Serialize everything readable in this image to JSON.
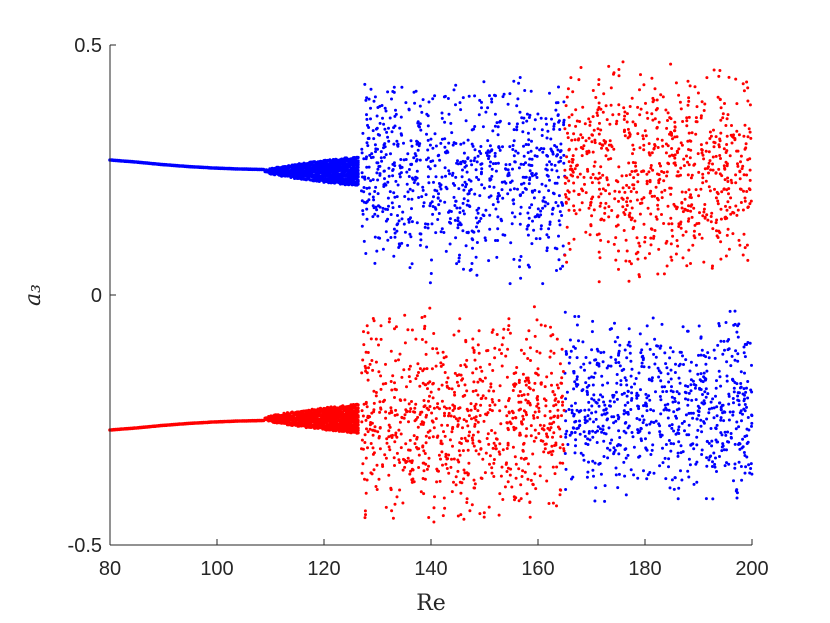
{
  "chart_data": {
    "type": "scatter",
    "title": "",
    "xlabel": "Re",
    "ylabel": "a₃",
    "xlim": [
      80,
      200
    ],
    "ylim": [
      -0.5,
      0.5
    ],
    "xticks": [
      80,
      100,
      120,
      140,
      160,
      180,
      200
    ],
    "yticks": [
      -0.5,
      0,
      0.5
    ],
    "xtick_labels": [
      "80",
      "100",
      "120",
      "140",
      "160",
      "180",
      "200"
    ],
    "ytick_labels": [
      "-0.5",
      "0",
      "0.5"
    ],
    "grid": false,
    "legend": false,
    "series": [
      {
        "color": "#0000ff",
        "segments": [
          {
            "kind": "fixed-point",
            "x_range": [
              80,
              109
            ],
            "y_values": [
              0.27,
              0.266,
              0.261,
              0.257,
              0.254,
              0.252,
              0.251
            ]
          },
          {
            "kind": "periodic-band",
            "x_range": [
              109,
              126.5
            ],
            "y_range": [
              0.22,
              0.275
            ]
          },
          {
            "kind": "chaotic-cloud",
            "x_range": [
              127,
              165
            ],
            "y_range": [
              0.02,
              0.45
            ]
          },
          {
            "kind": "chaotic-cloud",
            "x_range": [
              165,
              200
            ],
            "y_range": [
              -0.42,
              -0.02
            ]
          }
        ]
      },
      {
        "color": "#ff0000",
        "segments": [
          {
            "kind": "fixed-point",
            "x_range": [
              80,
              109
            ],
            "y_values": [
              -0.27,
              -0.266,
              -0.261,
              -0.257,
              -0.254,
              -0.252,
              -0.251
            ]
          },
          {
            "kind": "periodic-band",
            "x_range": [
              109,
              126.5
            ],
            "y_range": [
              -0.275,
              -0.22
            ]
          },
          {
            "kind": "chaotic-cloud",
            "x_range": [
              127,
              165
            ],
            "y_range": [
              -0.47,
              -0.02
            ]
          },
          {
            "kind": "chaotic-cloud",
            "x_range": [
              165,
              200
            ],
            "y_range": [
              0.02,
              0.48
            ]
          }
        ]
      }
    ]
  }
}
